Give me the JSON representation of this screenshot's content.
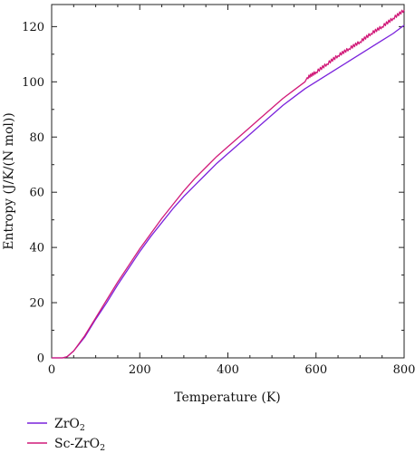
{
  "chart_data": {
    "type": "line",
    "title": "",
    "xlabel": "Temperature (K)",
    "ylabel": "Entropy (J/K/(N mol))",
    "xlim": [
      0,
      800
    ],
    "ylim": [
      0,
      128
    ],
    "xticks": [
      0,
      200,
      400,
      600,
      800
    ],
    "yticks": [
      0,
      20,
      40,
      60,
      80,
      100,
      120
    ],
    "grid": false,
    "legend_position": "bottom-left",
    "series": [
      {
        "name": "ZrO₂",
        "name_base": "ZrO",
        "name_sub": "2",
        "color": "#7a22dc",
        "x": [
          0,
          25,
          35,
          50,
          75,
          100,
          125,
          150,
          175,
          200,
          225,
          250,
          275,
          300,
          325,
          350,
          375,
          400,
          425,
          450,
          475,
          500,
          525,
          550,
          575,
          600,
          625,
          650,
          675,
          700,
          725,
          750,
          775,
          800
        ],
        "y": [
          0,
          0,
          0.4,
          2.5,
          7.5,
          14,
          20,
          26.5,
          32.5,
          38.5,
          44,
          49,
          54,
          58.5,
          62.5,
          66.5,
          70.5,
          74,
          77.5,
          81,
          84.5,
          88,
          91.5,
          94.5,
          97.5,
          100,
          102.5,
          105,
          107.5,
          110,
          112.5,
          115,
          117.5,
          120.5
        ]
      },
      {
        "name": "Sc-ZrO₂",
        "name_base": "Sc-ZrO",
        "name_sub": "2",
        "color": "#d11a79",
        "x": [
          0,
          25,
          35,
          50,
          75,
          100,
          125,
          150,
          175,
          200,
          225,
          250,
          275,
          300,
          325,
          350,
          375,
          400,
          425,
          450,
          475,
          500,
          525,
          550,
          575,
          580,
          600,
          625,
          650,
          675,
          700,
          725,
          750,
          775,
          800
        ],
        "y": [
          0,
          0,
          0.4,
          2.5,
          8,
          14.5,
          21,
          27.5,
          33.5,
          39.5,
          45,
          50.5,
          55.5,
          60.5,
          65,
          69,
          73,
          76.5,
          80,
          83.5,
          87,
          90.5,
          94,
          97,
          100,
          101.5,
          103.5,
          106.5,
          109.5,
          112,
          114.5,
          117.5,
          120,
          123,
          126
        ]
      }
    ]
  }
}
